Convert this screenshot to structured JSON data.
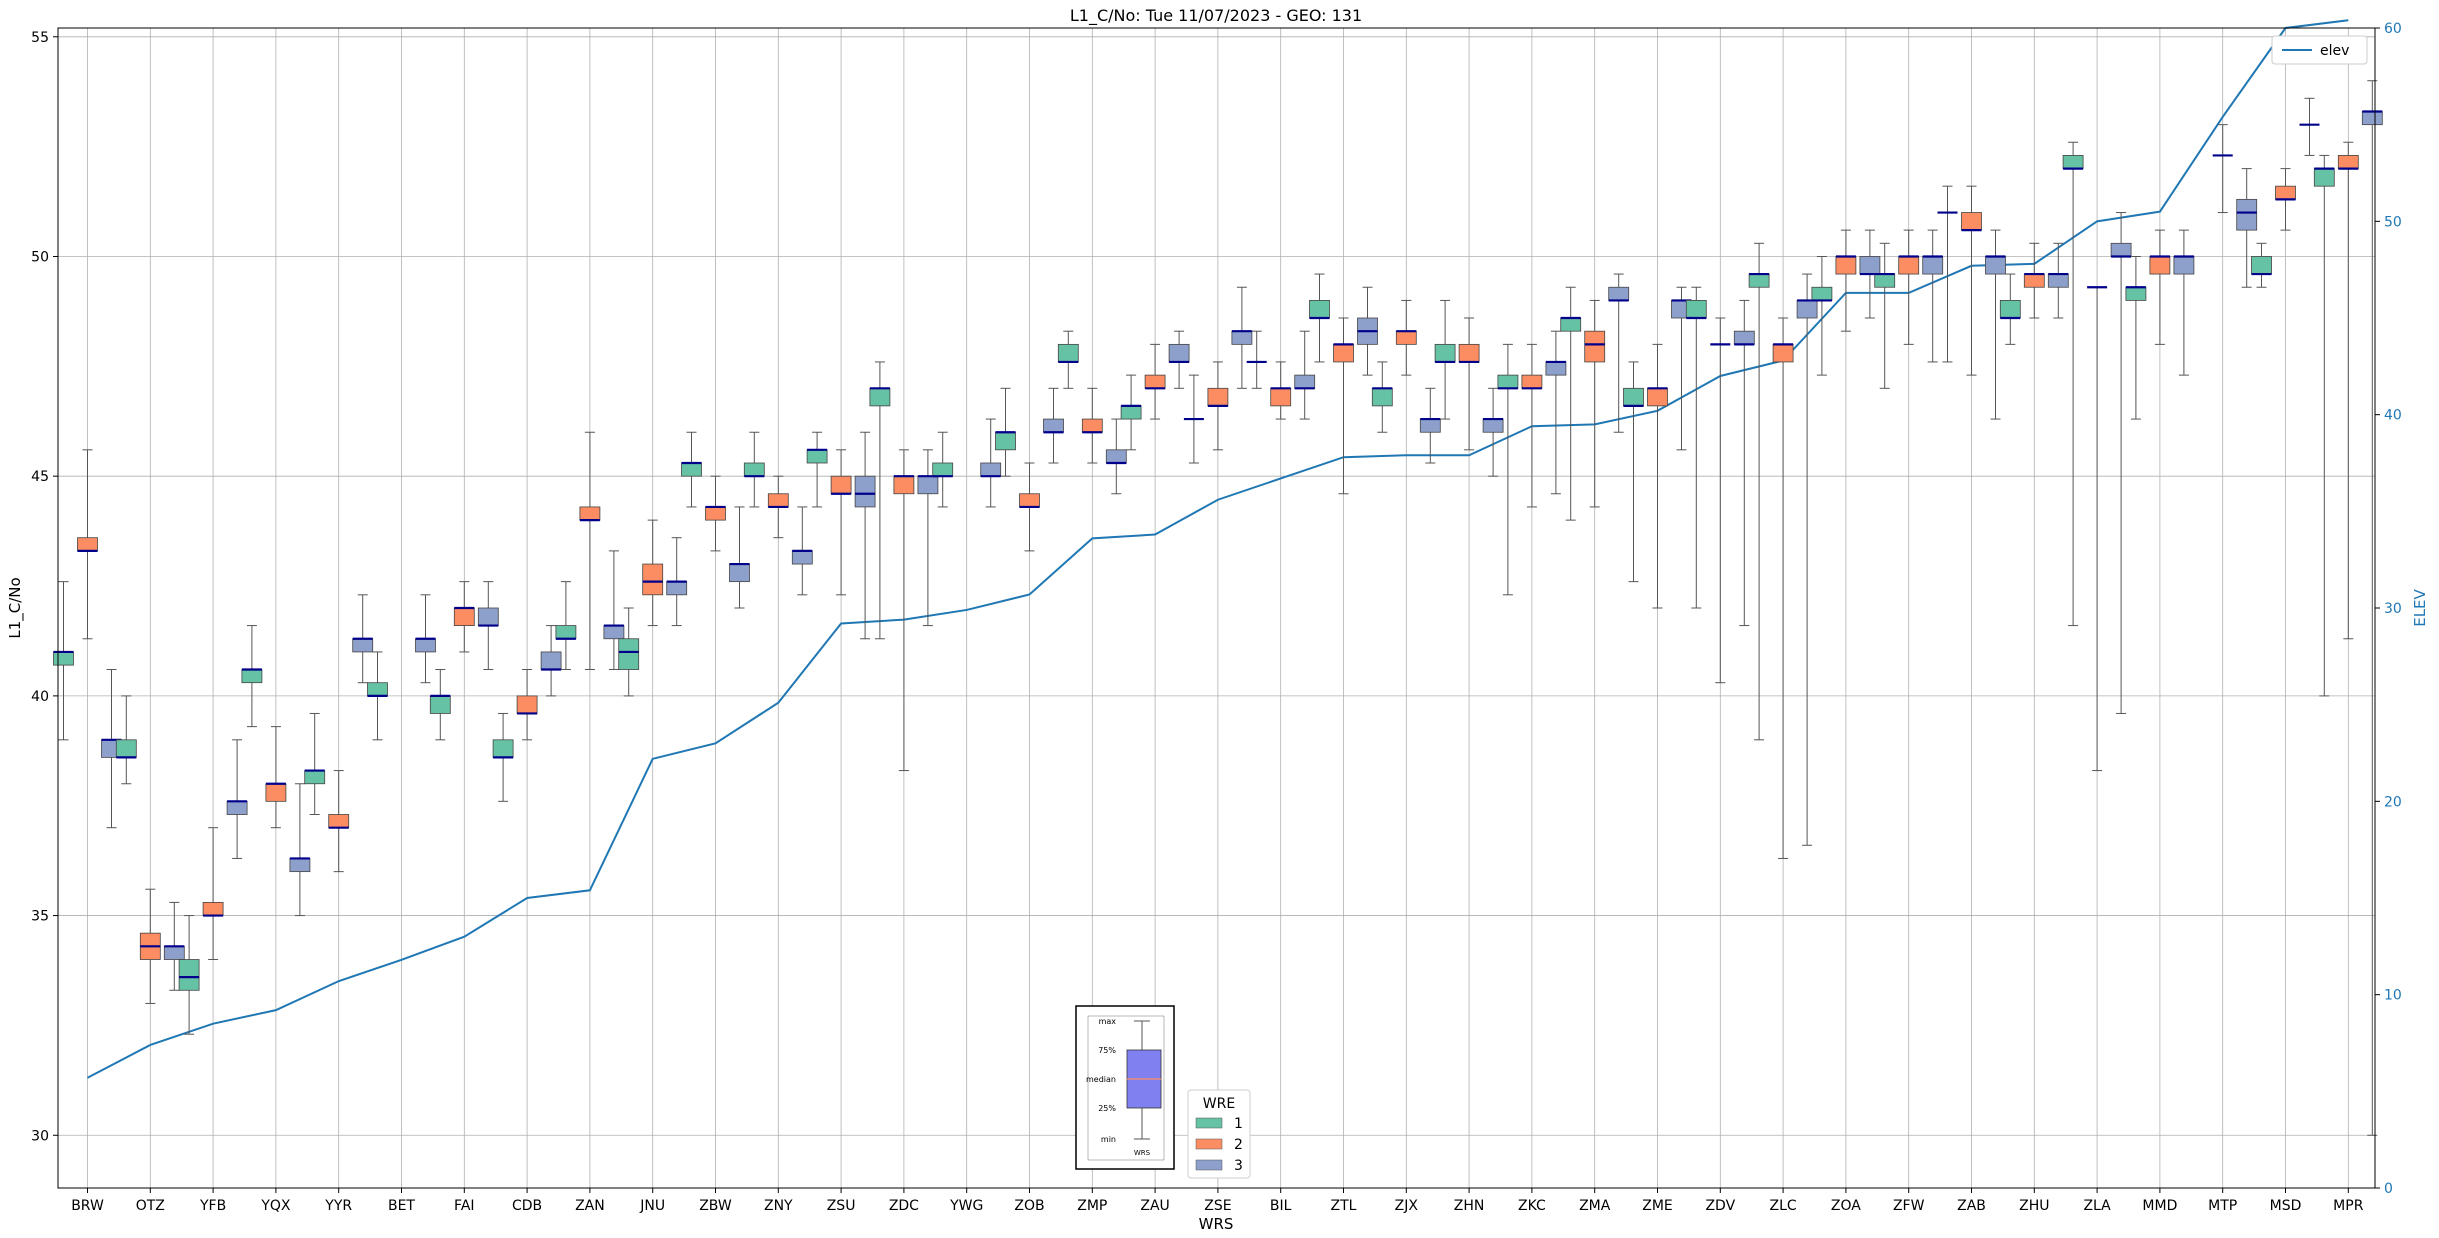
{
  "chart_data": {
    "type": "box",
    "title": "L1_C/No: Tue 11/07/2023 - GEO: 131",
    "xlabel": "WRS",
    "ylabel": "L1_C/No",
    "y2label": "ELEV",
    "ylim": [
      28.8,
      55.2
    ],
    "y2lim": [
      0,
      60
    ],
    "yticks": [
      30,
      35,
      40,
      45,
      50,
      55
    ],
    "y2ticks": [
      0,
      10,
      20,
      30,
      40,
      50,
      60
    ],
    "grid": true,
    "legend_elev": {
      "label": "elev",
      "placement": "top-right"
    },
    "legend_wre": {
      "title": "WRE",
      "labels": [
        "1",
        "2",
        "3"
      ],
      "placement": "bottom-center"
    },
    "inset": {
      "labels": [
        "max",
        "75%",
        "median",
        "25%",
        "min"
      ],
      "caption": "WRS"
    },
    "colors": {
      "wre1": "#66c2a5",
      "wre2": "#fc8d62",
      "wre3": "#8da0cb",
      "median": "#00008b",
      "elev": "#1f77b4",
      "grid": "#b0b0b0"
    },
    "categories": [
      "BRW",
      "OTZ",
      "YFB",
      "YQX",
      "YYR",
      "BET",
      "FAI",
      "CDB",
      "ZAN",
      "JNU",
      "ZBW",
      "ZNY",
      "ZSU",
      "ZDC",
      "YWG",
      "ZOB",
      "ZMP",
      "ZAU",
      "ZSE",
      "BIL",
      "ZTL",
      "ZJX",
      "ZHN",
      "ZKC",
      "ZMA",
      "ZME",
      "ZDV",
      "ZLC",
      "ZOA",
      "ZFW",
      "ZAB",
      "ZHU",
      "ZLA",
      "MMD",
      "MTP",
      "MSD",
      "MPR"
    ],
    "elev": [
      5.7,
      7.4,
      8.5,
      9.2,
      10.7,
      11.8,
      13.0,
      15.0,
      15.4,
      22.2,
      23.0,
      25.1,
      29.2,
      29.4,
      29.9,
      30.7,
      33.6,
      33.8,
      35.6,
      36.7,
      37.8,
      37.9,
      37.9,
      39.4,
      39.5,
      40.2,
      42.0,
      42.8,
      46.3,
      46.3,
      47.7,
      47.8,
      50.0,
      50.5,
      55.4,
      60.0,
      60.4
    ],
    "boxes": [
      {
        "wrs": "BRW",
        "wre": 1,
        "min": 39.0,
        "q1": 40.7,
        "med": 41.0,
        "q3": 41.0,
        "max": 42.6
      },
      {
        "wrs": "BRW",
        "wre": 2,
        "min": 41.3,
        "q1": 43.3,
        "med": 43.3,
        "q3": 43.6,
        "max": 45.6
      },
      {
        "wrs": "BRW",
        "wre": 3,
        "min": 37.0,
        "q1": 38.6,
        "med": 39.0,
        "q3": 39.0,
        "max": 40.6
      },
      {
        "wrs": "OTZ",
        "wre": 1,
        "min": 38.0,
        "q1": 38.6,
        "med": 38.6,
        "q3": 39.0,
        "max": 40.0
      },
      {
        "wrs": "OTZ",
        "wre": 2,
        "min": 33.0,
        "q1": 34.0,
        "med": 34.3,
        "q3": 34.6,
        "max": 35.6
      },
      {
        "wrs": "OTZ",
        "wre": 3,
        "min": 33.3,
        "q1": 34.0,
        "med": 34.3,
        "q3": 34.3,
        "max": 35.3
      },
      {
        "wrs": "YFB",
        "wre": 1,
        "min": 32.3,
        "q1": 33.3,
        "med": 33.6,
        "q3": 34.0,
        "max": 35.0
      },
      {
        "wrs": "YFB",
        "wre": 2,
        "min": 34.0,
        "q1": 35.0,
        "med": 35.0,
        "q3": 35.3,
        "max": 37.0
      },
      {
        "wrs": "YFB",
        "wre": 3,
        "min": 36.3,
        "q1": 37.3,
        "med": 37.6,
        "q3": 37.6,
        "max": 39.0
      },
      {
        "wrs": "YQX",
        "wre": 1,
        "min": 39.3,
        "q1": 40.3,
        "med": 40.6,
        "q3": 40.6,
        "max": 41.6
      },
      {
        "wrs": "YQX",
        "wre": 2,
        "min": 37.0,
        "q1": 37.6,
        "med": 38.0,
        "q3": 38.0,
        "max": 39.3
      },
      {
        "wrs": "YQX",
        "wre": 3,
        "min": 35.0,
        "q1": 36.0,
        "med": 36.3,
        "q3": 36.3,
        "max": 38.0
      },
      {
        "wrs": "YYR",
        "wre": 1,
        "min": 37.3,
        "q1": 38.0,
        "med": 38.3,
        "q3": 38.3,
        "max": 39.6
      },
      {
        "wrs": "YYR",
        "wre": 2,
        "min": 36.0,
        "q1": 37.0,
        "med": 37.0,
        "q3": 37.3,
        "max": 38.3
      },
      {
        "wrs": "YYR",
        "wre": 3,
        "min": 40.3,
        "q1": 41.0,
        "med": 41.3,
        "q3": 41.3,
        "max": 42.3
      },
      {
        "wrs": "BET",
        "wre": 1,
        "min": 39.0,
        "q1": 40.0,
        "med": 40.0,
        "q3": 40.3,
        "max": 41.0
      },
      {
        "wrs": "BET",
        "wre": 3,
        "min": 40.3,
        "q1": 41.0,
        "med": 41.3,
        "q3": 41.3,
        "max": 42.3
      },
      {
        "wrs": "FAI",
        "wre": 1,
        "min": 39.0,
        "q1": 39.6,
        "med": 40.0,
        "q3": 40.0,
        "max": 40.6
      },
      {
        "wrs": "FAI",
        "wre": 2,
        "min": 41.0,
        "q1": 41.6,
        "med": 42.0,
        "q3": 42.0,
        "max": 42.6
      },
      {
        "wrs": "FAI",
        "wre": 3,
        "min": 40.6,
        "q1": 41.6,
        "med": 41.6,
        "q3": 42.0,
        "max": 42.6
      },
      {
        "wrs": "CDB",
        "wre": 1,
        "min": 37.6,
        "q1": 38.6,
        "med": 38.6,
        "q3": 39.0,
        "max": 39.6
      },
      {
        "wrs": "CDB",
        "wre": 2,
        "min": 39.0,
        "q1": 39.6,
        "med": 39.6,
        "q3": 40.0,
        "max": 40.6
      },
      {
        "wrs": "CDB",
        "wre": 3,
        "min": 40.0,
        "q1": 40.6,
        "med": 40.6,
        "q3": 41.0,
        "max": 41.6
      },
      {
        "wrs": "ZAN",
        "wre": 1,
        "min": 40.6,
        "q1": 41.3,
        "med": 41.3,
        "q3": 41.6,
        "max": 42.6
      },
      {
        "wrs": "ZAN",
        "wre": 2,
        "min": 40.6,
        "q1": 44.0,
        "med": 44.0,
        "q3": 44.3,
        "max": 46.0
      },
      {
        "wrs": "ZAN",
        "wre": 3,
        "min": 40.6,
        "q1": 41.3,
        "med": 41.6,
        "q3": 41.6,
        "max": 43.3
      },
      {
        "wrs": "JNU",
        "wre": 1,
        "min": 40.0,
        "q1": 40.6,
        "med": 41.0,
        "q3": 41.3,
        "max": 42.0
      },
      {
        "wrs": "JNU",
        "wre": 2,
        "min": 41.6,
        "q1": 42.3,
        "med": 42.6,
        "q3": 43.0,
        "max": 44.0
      },
      {
        "wrs": "JNU",
        "wre": 3,
        "min": 41.6,
        "q1": 42.3,
        "med": 42.6,
        "q3": 42.6,
        "max": 43.6
      },
      {
        "wrs": "ZBW",
        "wre": 1,
        "min": 44.3,
        "q1": 45.0,
        "med": 45.3,
        "q3": 45.3,
        "max": 46.0
      },
      {
        "wrs": "ZBW",
        "wre": 2,
        "min": 43.3,
        "q1": 44.0,
        "med": 44.3,
        "q3": 44.3,
        "max": 45.0
      },
      {
        "wrs": "ZBW",
        "wre": 3,
        "min": 42.0,
        "q1": 42.6,
        "med": 43.0,
        "q3": 43.0,
        "max": 44.3
      },
      {
        "wrs": "ZNY",
        "wre": 1,
        "min": 44.3,
        "q1": 45.0,
        "med": 45.0,
        "q3": 45.3,
        "max": 46.0
      },
      {
        "wrs": "ZNY",
        "wre": 2,
        "min": 43.6,
        "q1": 44.3,
        "med": 44.3,
        "q3": 44.6,
        "max": 45.0
      },
      {
        "wrs": "ZNY",
        "wre": 3,
        "min": 42.3,
        "q1": 43.0,
        "med": 43.3,
        "q3": 43.3,
        "max": 44.3
      },
      {
        "wrs": "ZSU",
        "wre": 1,
        "min": 44.3,
        "q1": 45.3,
        "med": 45.6,
        "q3": 45.6,
        "max": 46.0
      },
      {
        "wrs": "ZSU",
        "wre": 2,
        "min": 42.3,
        "q1": 44.6,
        "med": 44.6,
        "q3": 45.0,
        "max": 45.6
      },
      {
        "wrs": "ZSU",
        "wre": 3,
        "min": 41.3,
        "q1": 44.3,
        "med": 44.6,
        "q3": 45.0,
        "max": 46.0
      },
      {
        "wrs": "ZDC",
        "wre": 1,
        "min": 41.3,
        "q1": 46.6,
        "med": 47.0,
        "q3": 47.0,
        "max": 47.6
      },
      {
        "wrs": "ZDC",
        "wre": 2,
        "min": 38.3,
        "q1": 44.6,
        "med": 45.0,
        "q3": 45.0,
        "max": 45.6
      },
      {
        "wrs": "ZDC",
        "wre": 3,
        "min": 41.6,
        "q1": 44.6,
        "med": 45.0,
        "q3": 45.0,
        "max": 45.6
      },
      {
        "wrs": "YWG",
        "wre": 1,
        "min": 44.3,
        "q1": 45.0,
        "med": 45.0,
        "q3": 45.3,
        "max": 46.0
      },
      {
        "wrs": "YWG",
        "wre": 3,
        "min": 44.3,
        "q1": 45.0,
        "med": 45.0,
        "q3": 45.3,
        "max": 46.3
      },
      {
        "wrs": "ZOB",
        "wre": 1,
        "min": 45.0,
        "q1": 45.6,
        "med": 46.0,
        "q3": 46.0,
        "max": 47.0
      },
      {
        "wrs": "ZOB",
        "wre": 2,
        "min": 43.3,
        "q1": 44.3,
        "med": 44.3,
        "q3": 44.6,
        "max": 45.3
      },
      {
        "wrs": "ZOB",
        "wre": 3,
        "min": 45.3,
        "q1": 46.0,
        "med": 46.0,
        "q3": 46.3,
        "max": 47.0
      },
      {
        "wrs": "ZMP",
        "wre": 1,
        "min": 47.0,
        "q1": 47.6,
        "med": 47.6,
        "q3": 48.0,
        "max": 48.3
      },
      {
        "wrs": "ZMP",
        "wre": 2,
        "min": 45.3,
        "q1": 46.0,
        "med": 46.0,
        "q3": 46.3,
        "max": 47.0
      },
      {
        "wrs": "ZMP",
        "wre": 3,
        "min": 44.6,
        "q1": 45.3,
        "med": 45.3,
        "q3": 45.6,
        "max": 46.3
      },
      {
        "wrs": "ZAU",
        "wre": 1,
        "min": 45.6,
        "q1": 46.3,
        "med": 46.6,
        "q3": 46.6,
        "max": 47.3
      },
      {
        "wrs": "ZAU",
        "wre": 2,
        "min": 46.3,
        "q1": 47.0,
        "med": 47.0,
        "q3": 47.3,
        "max": 48.0
      },
      {
        "wrs": "ZAU",
        "wre": 3,
        "min": 47.0,
        "q1": 47.6,
        "med": 47.6,
        "q3": 48.0,
        "max": 48.3
      },
      {
        "wrs": "ZSE",
        "wre": 1,
        "min": 45.3,
        "q1": 46.3,
        "med": 46.3,
        "q3": 46.3,
        "max": 47.3
      },
      {
        "wrs": "ZSE",
        "wre": 2,
        "min": 45.6,
        "q1": 46.6,
        "med": 46.6,
        "q3": 47.0,
        "max": 47.6
      },
      {
        "wrs": "ZSE",
        "wre": 3,
        "min": 47.0,
        "q1": 48.0,
        "med": 48.3,
        "q3": 48.3,
        "max": 49.3
      },
      {
        "wrs": "BIL",
        "wre": 1,
        "min": 47.0,
        "q1": 47.6,
        "med": 47.6,
        "q3": 47.6,
        "max": 48.3
      },
      {
        "wrs": "BIL",
        "wre": 2,
        "min": 46.3,
        "q1": 46.6,
        "med": 47.0,
        "q3": 47.0,
        "max": 47.6
      },
      {
        "wrs": "BIL",
        "wre": 3,
        "min": 46.3,
        "q1": 47.0,
        "med": 47.0,
        "q3": 47.3,
        "max": 48.3
      },
      {
        "wrs": "ZTL",
        "wre": 1,
        "min": 47.6,
        "q1": 48.6,
        "med": 48.6,
        "q3": 49.0,
        "max": 49.6
      },
      {
        "wrs": "ZTL",
        "wre": 2,
        "min": 44.6,
        "q1": 47.6,
        "med": 48.0,
        "q3": 48.0,
        "max": 48.6
      },
      {
        "wrs": "ZTL",
        "wre": 3,
        "min": 47.3,
        "q1": 48.0,
        "med": 48.3,
        "q3": 48.6,
        "max": 49.3
      },
      {
        "wrs": "ZJX",
        "wre": 1,
        "min": 46.0,
        "q1": 46.6,
        "med": 47.0,
        "q3": 47.0,
        "max": 47.6
      },
      {
        "wrs": "ZJX",
        "wre": 2,
        "min": 47.3,
        "q1": 48.0,
        "med": 48.3,
        "q3": 48.3,
        "max": 49.0
      },
      {
        "wrs": "ZJX",
        "wre": 3,
        "min": 45.3,
        "q1": 46.0,
        "med": 46.3,
        "q3": 46.3,
        "max": 47.0
      },
      {
        "wrs": "ZHN",
        "wre": 1,
        "min": 46.3,
        "q1": 47.6,
        "med": 47.6,
        "q3": 48.0,
        "max": 49.0
      },
      {
        "wrs": "ZHN",
        "wre": 2,
        "min": 45.6,
        "q1": 47.6,
        "med": 47.6,
        "q3": 48.0,
        "max": 48.6
      },
      {
        "wrs": "ZHN",
        "wre": 3,
        "min": 45.0,
        "q1": 46.0,
        "med": 46.3,
        "q3": 46.3,
        "max": 47.0
      },
      {
        "wrs": "ZKC",
        "wre": 1,
        "min": 42.3,
        "q1": 47.0,
        "med": 47.0,
        "q3": 47.3,
        "max": 48.0
      },
      {
        "wrs": "ZKC",
        "wre": 2,
        "min": 44.3,
        "q1": 47.0,
        "med": 47.0,
        "q3": 47.3,
        "max": 48.0
      },
      {
        "wrs": "ZKC",
        "wre": 3,
        "min": 44.6,
        "q1": 47.3,
        "med": 47.6,
        "q3": 47.6,
        "max": 48.3
      },
      {
        "wrs": "ZMA",
        "wre": 1,
        "min": 44.0,
        "q1": 48.3,
        "med": 48.6,
        "q3": 48.6,
        "max": 49.3
      },
      {
        "wrs": "ZMA",
        "wre": 2,
        "min": 44.3,
        "q1": 47.6,
        "med": 48.0,
        "q3": 48.3,
        "max": 49.0
      },
      {
        "wrs": "ZMA",
        "wre": 3,
        "min": 46.0,
        "q1": 49.0,
        "med": 49.0,
        "q3": 49.3,
        "max": 49.6
      },
      {
        "wrs": "ZME",
        "wre": 1,
        "min": 42.6,
        "q1": 46.6,
        "med": 46.6,
        "q3": 47.0,
        "max": 47.6
      },
      {
        "wrs": "ZME",
        "wre": 2,
        "min": 42.0,
        "q1": 46.6,
        "med": 47.0,
        "q3": 47.0,
        "max": 48.0
      },
      {
        "wrs": "ZME",
        "wre": 3,
        "min": 45.6,
        "q1": 48.6,
        "med": 49.0,
        "q3": 49.0,
        "max": 49.3
      },
      {
        "wrs": "ZDV",
        "wre": 1,
        "min": 42.0,
        "q1": 48.6,
        "med": 48.6,
        "q3": 49.0,
        "max": 49.3
      },
      {
        "wrs": "ZDV",
        "wre": 2,
        "min": 40.3,
        "q1": 48.0,
        "med": 48.0,
        "q3": 48.0,
        "max": 48.6
      },
      {
        "wrs": "ZDV",
        "wre": 3,
        "min": 41.6,
        "q1": 48.0,
        "med": 48.0,
        "q3": 48.3,
        "max": 49.0
      },
      {
        "wrs": "ZLC",
        "wre": 1,
        "min": 39.0,
        "q1": 49.3,
        "med": 49.6,
        "q3": 49.6,
        "max": 50.3
      },
      {
        "wrs": "ZLC",
        "wre": 2,
        "min": 36.3,
        "q1": 47.6,
        "med": 48.0,
        "q3": 48.0,
        "max": 48.6
      },
      {
        "wrs": "ZLC",
        "wre": 3,
        "min": 36.6,
        "q1": 48.6,
        "med": 49.0,
        "q3": 49.0,
        "max": 49.6
      },
      {
        "wrs": "ZOA",
        "wre": 1,
        "min": 47.3,
        "q1": 49.0,
        "med": 49.0,
        "q3": 49.3,
        "max": 50.0
      },
      {
        "wrs": "ZOA",
        "wre": 2,
        "min": 48.3,
        "q1": 49.6,
        "med": 50.0,
        "q3": 50.0,
        "max": 50.6
      },
      {
        "wrs": "ZOA",
        "wre": 3,
        "min": 48.6,
        "q1": 49.6,
        "med": 49.6,
        "q3": 50.0,
        "max": 50.6
      },
      {
        "wrs": "ZFW",
        "wre": 1,
        "min": 47.0,
        "q1": 49.3,
        "med": 49.6,
        "q3": 49.6,
        "max": 50.3
      },
      {
        "wrs": "ZFW",
        "wre": 2,
        "min": 48.0,
        "q1": 49.6,
        "med": 50.0,
        "q3": 50.0,
        "max": 50.6
      },
      {
        "wrs": "ZFW",
        "wre": 3,
        "min": 47.6,
        "q1": 49.6,
        "med": 50.0,
        "q3": 50.0,
        "max": 50.6
      },
      {
        "wrs": "ZAB",
        "wre": 1,
        "min": 47.6,
        "q1": 51.0,
        "med": 51.0,
        "q3": 51.0,
        "max": 51.6
      },
      {
        "wrs": "ZAB",
        "wre": 2,
        "min": 47.3,
        "q1": 50.6,
        "med": 50.6,
        "q3": 51.0,
        "max": 51.6
      },
      {
        "wrs": "ZAB",
        "wre": 3,
        "min": 46.3,
        "q1": 49.6,
        "med": 50.0,
        "q3": 50.0,
        "max": 50.6
      },
      {
        "wrs": "ZHU",
        "wre": 1,
        "min": 48.0,
        "q1": 48.6,
        "med": 48.6,
        "q3": 49.0,
        "max": 49.6
      },
      {
        "wrs": "ZHU",
        "wre": 2,
        "min": 48.6,
        "q1": 49.3,
        "med": 49.6,
        "q3": 49.6,
        "max": 50.3
      },
      {
        "wrs": "ZHU",
        "wre": 3,
        "min": 48.6,
        "q1": 49.3,
        "med": 49.6,
        "q3": 49.6,
        "max": 50.3
      },
      {
        "wrs": "ZLA",
        "wre": 1,
        "min": 41.6,
        "q1": 52.0,
        "med": 52.0,
        "q3": 52.3,
        "max": 52.6
      },
      {
        "wrs": "ZLA",
        "wre": 2,
        "min": 38.3,
        "q1": 49.3,
        "med": 49.3,
        "q3": 49.3,
        "max": 49.3
      },
      {
        "wrs": "ZLA",
        "wre": 3,
        "min": 39.6,
        "q1": 50.0,
        "med": 50.0,
        "q3": 50.3,
        "max": 51.0
      },
      {
        "wrs": "MMD",
        "wre": 1,
        "min": 46.3,
        "q1": 49.0,
        "med": 49.3,
        "q3": 49.3,
        "max": 50.0
      },
      {
        "wrs": "MMD",
        "wre": 2,
        "min": 48.0,
        "q1": 49.6,
        "med": 50.0,
        "q3": 50.0,
        "max": 50.6
      },
      {
        "wrs": "MMD",
        "wre": 3,
        "min": 47.3,
        "q1": 49.6,
        "med": 50.0,
        "q3": 50.0,
        "max": 50.6
      },
      {
        "wrs": "MTP",
        "wre": 2,
        "min": 51.0,
        "q1": 52.3,
        "med": 52.3,
        "q3": 52.3,
        "max": 53.0
      },
      {
        "wrs": "MTP",
        "wre": 3,
        "min": 49.3,
        "q1": 50.6,
        "med": 51.0,
        "q3": 51.3,
        "max": 52.0
      },
      {
        "wrs": "MSD",
        "wre": 1,
        "min": 49.3,
        "q1": 49.6,
        "med": 49.6,
        "q3": 50.0,
        "max": 50.3
      },
      {
        "wrs": "MSD",
        "wre": 2,
        "min": 50.6,
        "q1": 51.3,
        "med": 51.3,
        "q3": 51.6,
        "max": 52.0
      },
      {
        "wrs": "MSD",
        "wre": 3,
        "min": 52.3,
        "q1": 53.0,
        "med": 53.0,
        "q3": 53.0,
        "max": 53.6
      },
      {
        "wrs": "MPR",
        "wre": 1,
        "min": 40.0,
        "q1": 51.6,
        "med": 52.0,
        "q3": 52.0,
        "max": 52.3
      },
      {
        "wrs": "MPR",
        "wre": 2,
        "min": 41.3,
        "q1": 52.0,
        "med": 52.0,
        "q3": 52.3,
        "max": 52.6
      },
      {
        "wrs": "MPR",
        "wre": 3,
        "min": 30.0,
        "q1": 53.0,
        "med": 53.3,
        "q3": 53.3,
        "max": 54.0
      }
    ]
  }
}
